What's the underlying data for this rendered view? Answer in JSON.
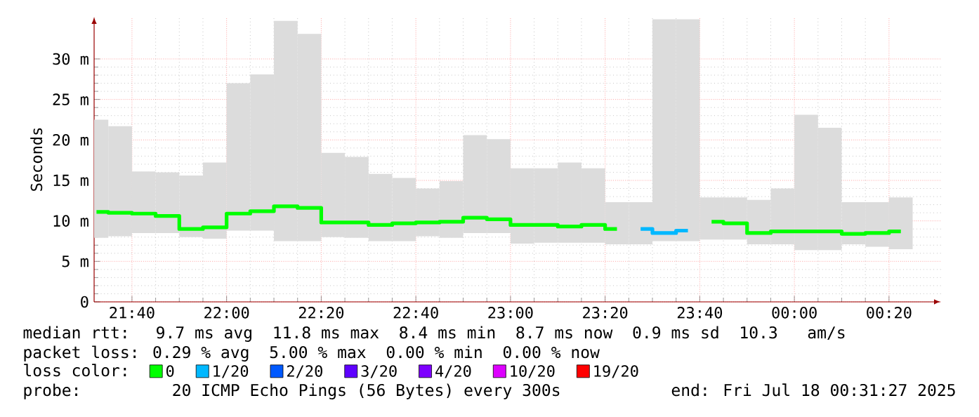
{
  "chart_data": {
    "type": "step",
    "ylabel": "Seconds",
    "legend_title": "loss color:",
    "legend": "bottom",
    "grid": true,
    "x": [
      "2025-07-17T21:32:30",
      "2025-07-17T21:37:30",
      "2025-07-17T21:42:30",
      "2025-07-17T21:47:30",
      "2025-07-17T21:52:30",
      "2025-07-17T21:57:30",
      "2025-07-17T22:02:30",
      "2025-07-17T22:07:30",
      "2025-07-17T22:12:30",
      "2025-07-17T22:17:30",
      "2025-07-17T22:22:30",
      "2025-07-17T22:27:30",
      "2025-07-17T22:32:30",
      "2025-07-17T22:37:30",
      "2025-07-17T22:42:30",
      "2025-07-17T22:47:30",
      "2025-07-17T22:52:30",
      "2025-07-17T22:57:30",
      "2025-07-17T23:02:30",
      "2025-07-17T23:07:30",
      "2025-07-17T23:12:30",
      "2025-07-17T23:17:30",
      "2025-07-17T23:22:30",
      "2025-07-17T23:27:30",
      "2025-07-17T23:32:30",
      "2025-07-17T23:37:30",
      "2025-07-17T23:42:30",
      "2025-07-17T23:47:30",
      "2025-07-17T23:52:30",
      "2025-07-17T23:57:30",
      "2025-07-18T00:02:30",
      "2025-07-18T00:07:30",
      "2025-07-18T00:12:30",
      "2025-07-18T00:17:30",
      "2025-07-18T00:22:30"
    ],
    "xlim": [
      "2025-07-17T21:32",
      "2025-07-18T00:31"
    ],
    "xticks": [
      {
        "value": "2025-07-17T21:40",
        "label": "21:40"
      },
      {
        "value": "2025-07-17T22:00",
        "label": "22:00"
      },
      {
        "value": "2025-07-17T22:20",
        "label": "22:20"
      },
      {
        "value": "2025-07-17T22:40",
        "label": "22:40"
      },
      {
        "value": "2025-07-17T23:00",
        "label": "23:00"
      },
      {
        "value": "2025-07-17T23:20",
        "label": "23:20"
      },
      {
        "value": "2025-07-17T23:40",
        "label": "23:40"
      },
      {
        "value": "2025-07-18T00:00",
        "label": "00:00"
      },
      {
        "value": "2025-07-18T00:20",
        "label": "00:20"
      }
    ],
    "ylim": [
      0,
      35.2
    ],
    "yticks": [
      0,
      {
        "value": 5,
        "label": "5 m"
      },
      {
        "value": 10,
        "label": "10 m"
      },
      {
        "value": 15,
        "label": "15 m"
      },
      {
        "value": 20,
        "label": "20 m"
      },
      {
        "value": 25,
        "label": "25 m"
      },
      {
        "value": 30,
        "label": "30 m"
      }
    ],
    "series": [
      {
        "type": "bar",
        "color": "#dcdcdc",
        "base": [
          7.9,
          8.1,
          8.5,
          8.5,
          8.0,
          7.8,
          8.8,
          8.8,
          7.5,
          7.5,
          8.0,
          7.9,
          7.5,
          7.5,
          8.1,
          7.9,
          8.5,
          8.5,
          7.2,
          7.3,
          7.3,
          7.3,
          7.1,
          7.1,
          7.5,
          7.5,
          7.7,
          7.7,
          7.1,
          7.1,
          6.4,
          6.4,
          7.1,
          6.8,
          6.5
        ],
        "values": [
          14.6,
          13.6,
          7.6,
          7.5,
          7.6,
          9.4,
          18.2,
          19.3,
          27.2,
          25.6,
          10.4,
          10.0,
          8.3,
          7.8,
          5.9,
          7.0,
          12.1,
          11.6,
          9.3,
          9.2,
          9.9,
          9.2,
          5.2,
          5.2,
          27.4,
          27.4,
          5.2,
          5.2,
          5.5,
          6.9,
          16.7,
          15.1,
          5.2,
          5.5,
          6.4
        ]
      },
      {
        "name": "0",
        "color": "#00ff00",
        "values": [
          11.1,
          11.0,
          10.9,
          10.6,
          9.0,
          9.2,
          10.9,
          11.2,
          11.8,
          11.6,
          9.8,
          9.8,
          9.5,
          9.7,
          9.8,
          9.9,
          10.4,
          10.2,
          9.5,
          9.5,
          9.3,
          9.5,
          9.0,
          null,
          null,
          null,
          9.9,
          9.7,
          8.5,
          8.7,
          8.7,
          8.7,
          8.4,
          8.5,
          8.7
        ]
      },
      {
        "name": "1/20",
        "color": "#00b8ff",
        "values": [
          null,
          null,
          null,
          null,
          null,
          null,
          null,
          null,
          null,
          null,
          null,
          null,
          null,
          null,
          null,
          null,
          null,
          null,
          null,
          null,
          null,
          null,
          null,
          9.0,
          8.5,
          8.8,
          null,
          null,
          null,
          null,
          null,
          null,
          null,
          null,
          null
        ]
      },
      {
        "name": "2/20",
        "color": "#0059ff",
        "values": [
          null,
          null,
          null,
          null,
          null,
          null,
          null,
          null,
          null,
          null,
          null,
          null,
          null,
          null,
          null,
          null,
          null,
          null,
          null,
          null,
          null,
          null,
          null,
          null,
          null,
          null,
          null,
          null,
          null,
          null,
          null,
          null,
          null,
          null,
          null
        ]
      },
      {
        "name": "3/20",
        "color": "#5e00ff",
        "values": [
          null,
          null,
          null,
          null,
          null,
          null,
          null,
          null,
          null,
          null,
          null,
          null,
          null,
          null,
          null,
          null,
          null,
          null,
          null,
          null,
          null,
          null,
          null,
          null,
          null,
          null,
          null,
          null,
          null,
          null,
          null,
          null,
          null,
          null,
          null
        ]
      },
      {
        "name": "4/20",
        "color": "#7e00ff",
        "values": [
          null,
          null,
          null,
          null,
          null,
          null,
          null,
          null,
          null,
          null,
          null,
          null,
          null,
          null,
          null,
          null,
          null,
          null,
          null,
          null,
          null,
          null,
          null,
          null,
          null,
          null,
          null,
          null,
          null,
          null,
          null,
          null,
          null,
          null,
          null
        ]
      },
      {
        "name": "10/20",
        "color": "#dd00ff",
        "values": [
          null,
          null,
          null,
          null,
          null,
          null,
          null,
          null,
          null,
          null,
          null,
          null,
          null,
          null,
          null,
          null,
          null,
          null,
          null,
          null,
          null,
          null,
          null,
          null,
          null,
          null,
          null,
          null,
          null,
          null,
          null,
          null,
          null,
          null,
          null
        ]
      },
      {
        "name": "19/20",
        "color": "#ff0000",
        "values": [
          null,
          null,
          null,
          null,
          null,
          null,
          null,
          null,
          null,
          null,
          null,
          null,
          null,
          null,
          null,
          null,
          null,
          null,
          null,
          null,
          null,
          null,
          null,
          null,
          null,
          null,
          null,
          null,
          null,
          null,
          null,
          null,
          null,
          null,
          null
        ]
      }
    ],
    "annotations": [
      "median rtt:  9.7 ms avg  11.8 ms max  8.4 ms min  8.7 ms now  0.9 ms sd  10.3   am/s",
      "packet loss: 0.29 % avg  5.00 % max  0.00 % min  0.00 % now",
      "probe:       20 ICMP Echo Pings (56 Bytes) every 300s",
      "end: Fri Jul 18 00:31:27 2025"
    ]
  }
}
